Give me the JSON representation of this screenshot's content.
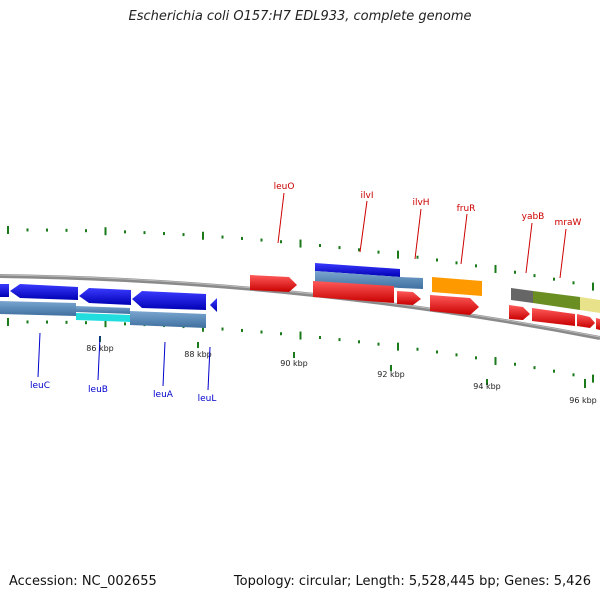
{
  "title": "Escherichia coli O157:H7 EDL933, complete genome",
  "footer": {
    "accession": "Accession: NC_002655",
    "summary": "Topology: circular; Length: 5,528,445 bp; Genes: 5,426"
  },
  "colors": {
    "backbone": "#888888",
    "tick": "#1a7a1a",
    "forward_label": "#cc0000",
    "reverse_label": "#0000cc"
  },
  "ticks": [
    "86 kbp",
    "88 kbp",
    "90 kbp",
    "92 kbp",
    "94 kbp",
    "96 kbp"
  ],
  "genes": {
    "forward": [
      "leuO",
      "ilvI",
      "ilvH",
      "fruR",
      "yabB",
      "mraW"
    ],
    "reverse": [
      "leuC",
      "leuB",
      "leuA",
      "leuL"
    ]
  }
}
